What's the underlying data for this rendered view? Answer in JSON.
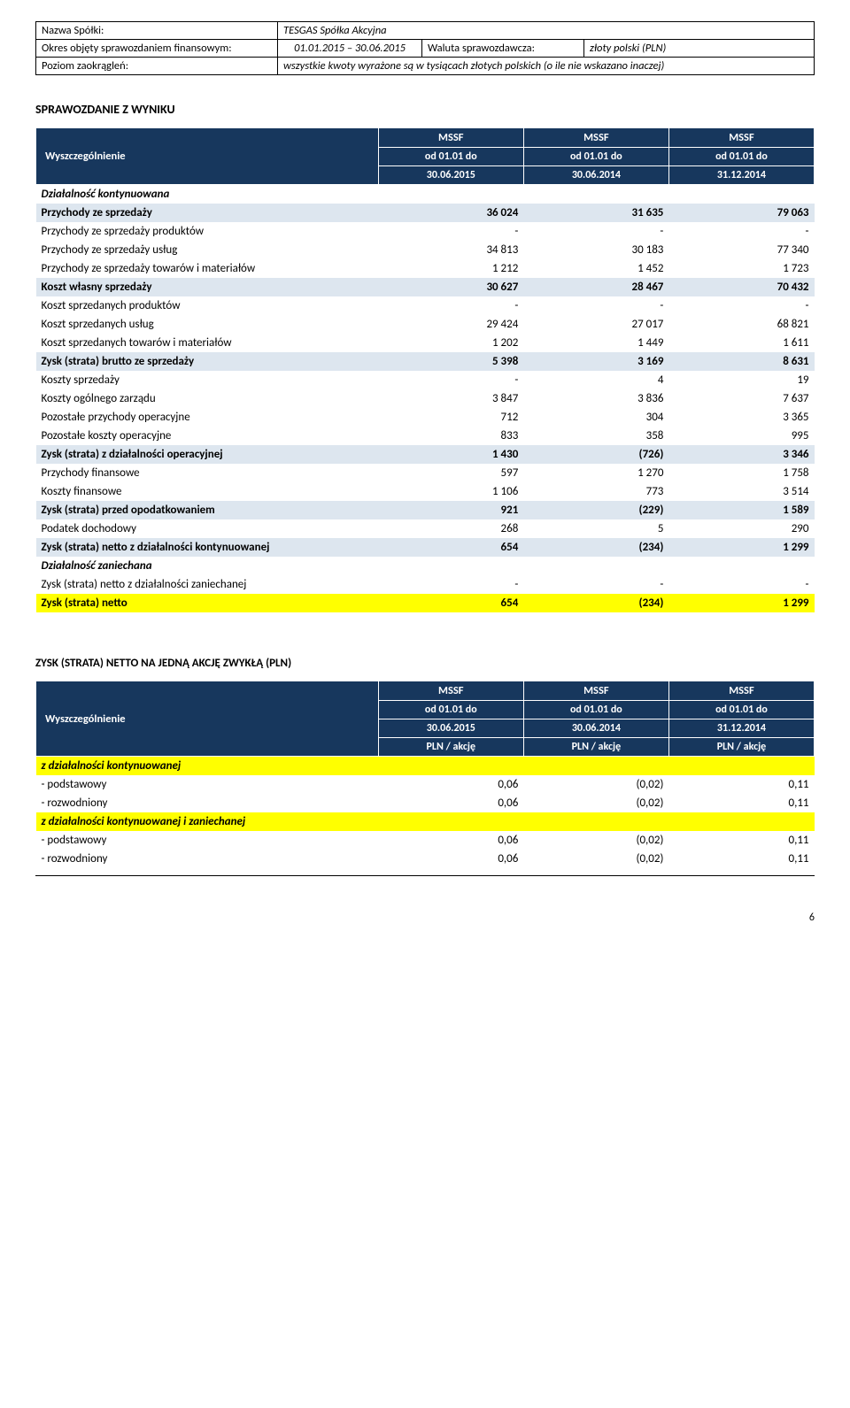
{
  "header": {
    "rows": [
      {
        "label": "Nazwa Spółki:",
        "value": "TESGAS Spółka Akcyjna",
        "colspan": 3
      },
      {
        "label": "Okres objęty sprawozdaniem finansowym:",
        "mid": "01.01.2015 – 30.06.2015",
        "r1": "Waluta sprawozdawcza:",
        "r2": "złoty polski (PLN)"
      },
      {
        "label": "Poziom zaokrągleń:",
        "value": "wszystkie kwoty wyrażone są w tysiącach złotych polskich (o ile nie wskazano inaczej)",
        "colspan": 3
      }
    ]
  },
  "section1": {
    "title": "SPRAWOZDANIE Z WYNIKU",
    "head": {
      "wy": "Wyszczególnienie",
      "cols": [
        {
          "top": "MSSF",
          "sub1": "od 01.01 do",
          "sub2": "30.06.2015"
        },
        {
          "top": "MSSF",
          "sub1": "od 01.01 do",
          "sub2": "30.06.2014"
        },
        {
          "top": "MSSF",
          "sub1": "od 01.01 do",
          "sub2": "31.12.2014"
        }
      ]
    },
    "rows": [
      {
        "kind": "it",
        "label": "Działalność kontynuowana",
        "v": [
          "",
          "",
          ""
        ]
      },
      {
        "kind": "band",
        "label": "Przychody ze sprzedaży",
        "v": [
          "36 024",
          "31 635",
          "79 063"
        ]
      },
      {
        "kind": "",
        "label": "Przychody ze sprzedaży produktów",
        "v": [
          "-",
          "-",
          "-"
        ]
      },
      {
        "kind": "",
        "label": "Przychody ze sprzedaży usług",
        "v": [
          "34 813",
          "30 183",
          "77 340"
        ]
      },
      {
        "kind": "",
        "label": "Przychody ze sprzedaży towarów i materiałów",
        "v": [
          "1 212",
          "1 452",
          "1 723"
        ]
      },
      {
        "kind": "band",
        "label": "Koszt własny sprzedaży",
        "v": [
          "30 627",
          "28 467",
          "70 432"
        ]
      },
      {
        "kind": "",
        "label": "Koszt sprzedanych produktów",
        "v": [
          "-",
          "-",
          "-"
        ]
      },
      {
        "kind": "",
        "label": "Koszt sprzedanych usług",
        "v": [
          "29 424",
          "27 017",
          "68 821"
        ]
      },
      {
        "kind": "",
        "label": "Koszt sprzedanych towarów i materiałów",
        "v": [
          "1 202",
          "1 449",
          "1 611"
        ]
      },
      {
        "kind": "band",
        "label": "Zysk (strata) brutto ze sprzedaży",
        "v": [
          "5 398",
          "3 169",
          "8 631"
        ]
      },
      {
        "kind": "",
        "label": "Koszty sprzedaży",
        "v": [
          "-",
          "4",
          "19"
        ]
      },
      {
        "kind": "",
        "label": "Koszty ogólnego zarządu",
        "v": [
          "3 847",
          "3 836",
          "7 637"
        ]
      },
      {
        "kind": "",
        "label": "Pozostałe przychody operacyjne",
        "v": [
          "712",
          "304",
          "3 365"
        ]
      },
      {
        "kind": "",
        "label": "Pozostałe koszty operacyjne",
        "v": [
          "833",
          "358",
          "995"
        ]
      },
      {
        "kind": "band",
        "label": "Zysk (strata) z działalności operacyjnej",
        "v": [
          "1 430",
          "(726)",
          "3 346"
        ]
      },
      {
        "kind": "",
        "label": "Przychody finansowe",
        "v": [
          "597",
          "1 270",
          "1 758"
        ]
      },
      {
        "kind": "",
        "label": "Koszty finansowe",
        "v": [
          "1 106",
          "773",
          "3 514"
        ]
      },
      {
        "kind": "band",
        "label": "Zysk (strata) przed opodatkowaniem",
        "v": [
          "921",
          "(229)",
          "1 589"
        ]
      },
      {
        "kind": "",
        "label": "Podatek dochodowy",
        "v": [
          "268",
          "5",
          "290"
        ]
      },
      {
        "kind": "band",
        "label": "Zysk (strata) netto z działalności kontynuowanej",
        "v": [
          "654",
          "(234)",
          "1 299"
        ]
      },
      {
        "kind": "it",
        "label": "Działalność zaniechana",
        "v": [
          "",
          "",
          ""
        ]
      },
      {
        "kind": "",
        "label": "Zysk (strata) netto z działalności zaniechanej",
        "v": [
          "-",
          "-",
          "-"
        ]
      },
      {
        "kind": "yellow",
        "label": "Zysk (strata) netto",
        "v": [
          "654",
          "(234)",
          "1 299"
        ]
      }
    ],
    "colors": {
      "head_bg": "#17375d",
      "head_fg": "#ffffff",
      "band_bg": "#dde6ef",
      "yellow_bg": "#ffff00"
    }
  },
  "section2": {
    "title": "ZYSK (STRATA) NETTO NA JEDNĄ AKCJĘ ZWYKŁĄ (PLN)",
    "head": {
      "wy": "Wyszczególnienie",
      "cols": [
        {
          "top": "MSSF",
          "sub1": "od 01.01 do",
          "sub2": "30.06.2015",
          "unit": "PLN / akcję"
        },
        {
          "top": "MSSF",
          "sub1": "od 01.01 do",
          "sub2": "30.06.2014",
          "unit": "PLN / akcję"
        },
        {
          "top": "MSSF",
          "sub1": "od 01.01 do",
          "sub2": "31.12.2014",
          "unit": "PLN / akcję"
        }
      ]
    },
    "rows": [
      {
        "kind": "yellow-it",
        "label": "z działalności kontynuowanej",
        "v": [
          "",
          "",
          ""
        ]
      },
      {
        "kind": "",
        "label": "- podstawowy",
        "v": [
          "0,06",
          "(0,02)",
          "0,11"
        ]
      },
      {
        "kind": "",
        "label": "- rozwodniony",
        "v": [
          "0,06",
          "(0,02)",
          "0,11"
        ]
      },
      {
        "kind": "yellow-it",
        "label": "z działalności kontynuowanej i zaniechanej",
        "v": [
          "",
          "",
          ""
        ]
      },
      {
        "kind": "",
        "label": "- podstawowy",
        "v": [
          "0,06",
          "(0,02)",
          "0,11"
        ]
      },
      {
        "kind": "",
        "label": "- rozwodniony",
        "v": [
          "0,06",
          "(0,02)",
          "0,11"
        ]
      }
    ]
  },
  "page_number": "6"
}
